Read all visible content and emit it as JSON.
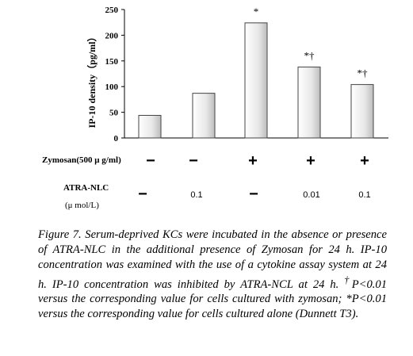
{
  "chart_data": {
    "type": "bar",
    "ylabel": "IP-10 density（pg/ml）",
    "ylim": [
      0,
      250
    ],
    "yticks": [
      0,
      50,
      100,
      150,
      200,
      250
    ],
    "bar_color": "#e8e8e8",
    "values": [
      44,
      87,
      224,
      138,
      104
    ],
    "data_labels": [
      "",
      "",
      "*",
      "*†",
      "*†"
    ]
  },
  "treatments": {
    "zymosan_label": "Zymosan(500 μ g/ml)",
    "zymosan": [
      "−",
      "−",
      "+",
      "+",
      "+"
    ],
    "atra_label": "ATRA-NLC",
    "atra_unit": "(μ mol/L)",
    "atra": [
      "−",
      "0.1",
      "−",
      "0.01",
      "0.1"
    ]
  },
  "caption": {
    "figure": "Figure 7.",
    "text1": " Serum-deprived KCs were incubated in the absence or presence of ATRA-NLC in the additional presence of Zymosan for 24 h. IP-10 concentration was examined with the use of a cytokine assay system at 24 h. IP-10 concentration was inhibited by ATRA-NCL at 24 h. ",
    "dagger": "†",
    "text2": "P<0.01 versus the corresponding value for cells cultured with zymosan; *P<0.01 versus the corresponding value for cells cultured alone (Dunnett T3)."
  }
}
